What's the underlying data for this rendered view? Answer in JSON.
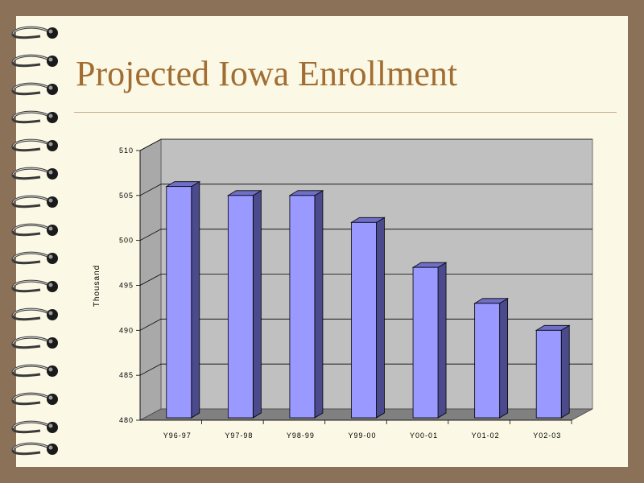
{
  "slide": {
    "title": "Projected Iowa Enrollment"
  },
  "chart_data": {
    "type": "bar",
    "title": "",
    "xlabel": "",
    "ylabel": "Thousand",
    "categories": [
      "Y96-97",
      "Y97-98",
      "Y98-99",
      "Y99-00",
      "Y00-01",
      "Y01-02",
      "Y02-03"
    ],
    "values": [
      506,
      505,
      505,
      502,
      497,
      493,
      490
    ],
    "ylim": [
      480,
      510
    ],
    "yticks": [
      480,
      485,
      490,
      495,
      500,
      505,
      510
    ],
    "grid": true,
    "bar_color": "#9999ff",
    "bar_side_color": "#4a4a8c",
    "wall_color": "#c0c0c0",
    "floor_color": "#808080"
  }
}
